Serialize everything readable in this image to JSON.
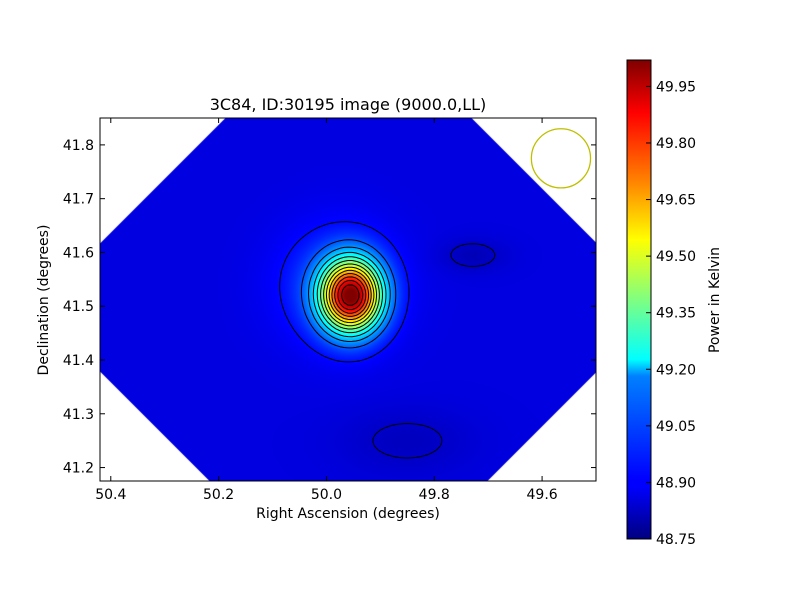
{
  "chart_data": {
    "type": "heatmap",
    "title": "3C84, ID:30195 image (9000.0,LL)",
    "xlabel": "Right Ascension (degrees)",
    "ylabel": "Declination (degrees)",
    "xlim": [
      50.42,
      49.5
    ],
    "ylim": [
      41.175,
      41.85
    ],
    "x_ticks": [
      50.4,
      50.2,
      50.0,
      49.8,
      49.6
    ],
    "x_tick_labels": [
      "50.4",
      "50.2",
      "50.0",
      "49.8",
      "49.6"
    ],
    "y_ticks": [
      41.2,
      41.3,
      41.4,
      41.5,
      41.6,
      41.7,
      41.8
    ],
    "y_tick_labels": [
      "41.2",
      "41.3",
      "41.4",
      "41.5",
      "41.6",
      "41.7",
      "41.8"
    ],
    "colorbar": {
      "label": "Power in Kelvin",
      "range": [
        48.75,
        50.02
      ],
      "ticks": [
        48.75,
        48.9,
        49.05,
        49.2,
        49.35,
        49.5,
        49.65,
        49.8,
        49.95
      ],
      "tick_labels": [
        "48.75",
        "48.90",
        "49.05",
        "49.20",
        "49.35",
        "49.50",
        "49.65",
        "49.80",
        "49.95"
      ],
      "colormap": "jet"
    },
    "peak": {
      "ra": 49.955,
      "dec": 41.52,
      "value": 50.0
    },
    "background_value": 48.87,
    "beam_circle": {
      "ra": 49.565,
      "dec": 41.775,
      "radius_deg": 0.055,
      "color": "#bfbf00"
    },
    "grid": false
  }
}
